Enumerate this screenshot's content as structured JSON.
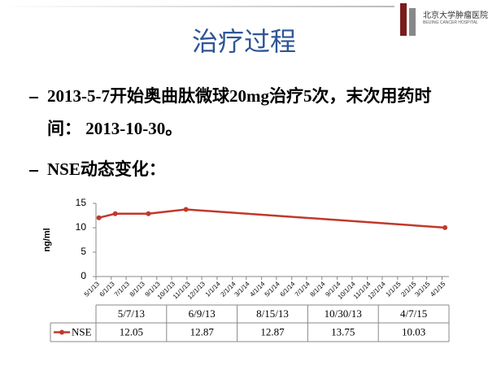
{
  "logo": {
    "name": "北京大学肿瘤医院",
    "english": "BEIJING CANCER HOSPITAL"
  },
  "title": "治疗过程",
  "bullets": [
    "2013-5-7开始奥曲肽微球20mg治疗5次，末次用药时间： 2013-10-30。",
    "NSE动态变化："
  ],
  "chart_data": {
    "type": "line",
    "y_label": "ng/ml",
    "x": [
      "5/7/13",
      "6/9/13",
      "8/15/13",
      "10/30/13",
      "4/7/15"
    ],
    "series": [
      {
        "name": "NSE",
        "color": "#c0392b",
        "values": [
          12.05,
          12.87,
          12.87,
          13.75,
          10.03
        ]
      }
    ],
    "xlim": [
      "5/1/13",
      "4/15/15"
    ],
    "xticks": [
      "5/1/13",
      "6/1/13",
      "7/1/13",
      "8/1/13",
      "9/1/13",
      "10/1/13",
      "11/1/13",
      "12/1/13",
      "1/1/14",
      "2/1/14",
      "3/1/14",
      "4/1/14",
      "5/1/14",
      "6/1/14",
      "7/1/14",
      "8/1/14",
      "9/1/14",
      "10/1/14",
      "11/1/14",
      "12/1/14",
      "1/1/15",
      "2/1/15",
      "3/1/15",
      "4/1/15"
    ],
    "ylim": [
      0,
      15
    ],
    "yticks": [
      0,
      5,
      10,
      15
    ],
    "grid": false,
    "data_table": true
  }
}
